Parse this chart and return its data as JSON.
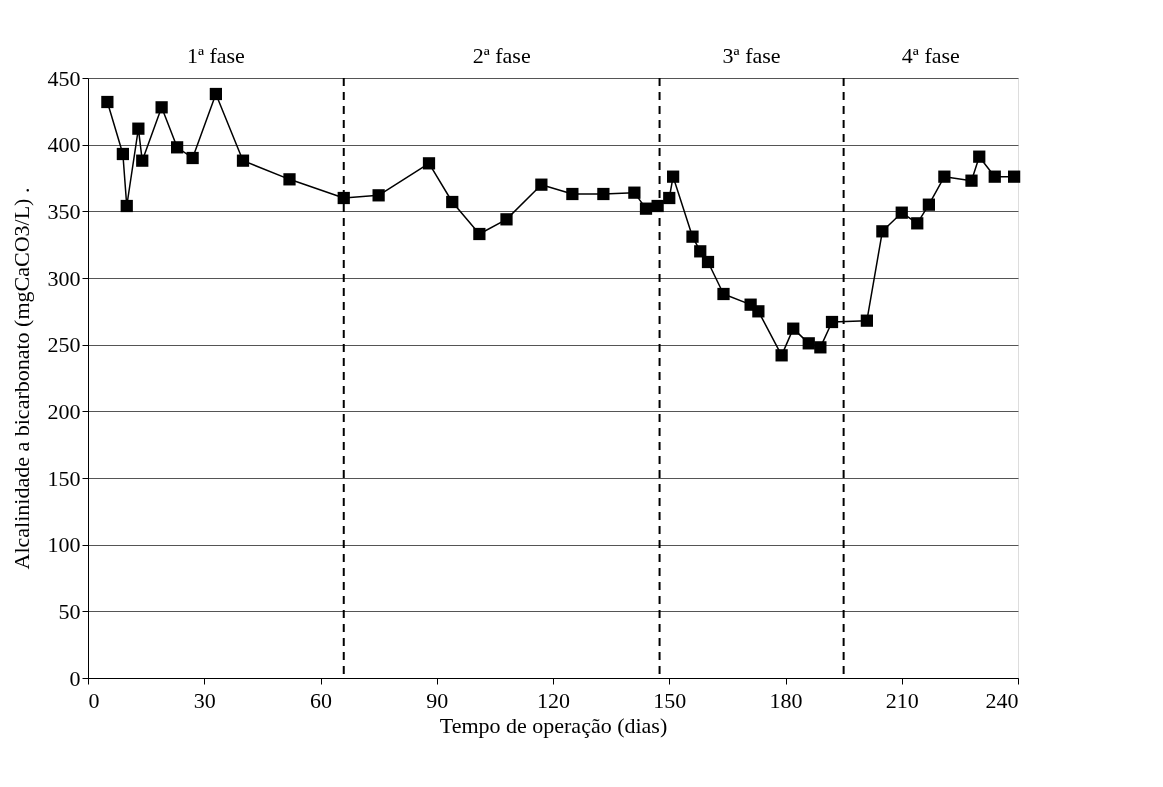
{
  "chart_data": {
    "type": "line",
    "xlabel": "Tempo de operação (dias)",
    "ylabel": "Alcalinidade a bicarbonato (mgCaCO3/L)  .",
    "x": [
      5,
      9,
      10,
      13,
      14,
      19,
      23,
      27,
      33,
      40,
      52,
      66,
      75,
      88,
      94,
      101,
      108,
      117,
      125,
      133,
      141,
      144,
      147,
      150,
      151,
      156,
      158,
      160,
      164,
      171,
      173,
      179,
      182,
      186,
      189,
      192,
      201,
      205,
      210,
      214,
      217,
      221,
      228,
      230,
      234,
      239
    ],
    "series": [
      {
        "color": "#000000",
        "values": [
          432,
          393,
          354,
          412,
          388,
          428,
          398,
          390,
          438,
          388,
          374,
          360,
          362,
          386,
          357,
          333,
          344,
          370,
          363,
          363,
          364,
          352,
          354,
          360,
          376,
          331,
          320,
          312,
          288,
          280,
          275,
          242,
          262,
          251,
          248,
          267,
          268,
          335,
          349,
          341,
          355,
          376,
          373,
          391,
          376,
          376
        ]
      }
    ],
    "xlim": [
      0,
      240
    ],
    "xticks": [
      0,
      30,
      60,
      90,
      120,
      150,
      180,
      210,
      240
    ],
    "ylim": [
      0,
      450
    ],
    "yticks": [
      0,
      50,
      100,
      150,
      200,
      250,
      300,
      350,
      400,
      450
    ],
    "grid": "y",
    "marker": "square",
    "line_style": "solid",
    "ref_lines": [
      {
        "axis": "x",
        "value": 66,
        "color": "#000000",
        "line_style": "dashed"
      },
      {
        "axis": "x",
        "value": 147.5,
        "color": "#000000",
        "line_style": "dashed"
      },
      {
        "axis": "x",
        "value": 195,
        "color": "#000000",
        "line_style": "dashed"
      }
    ],
    "annotations": [
      "1ª fase",
      "2ª fase",
      "3ª fase",
      "4ª fase"
    ]
  }
}
